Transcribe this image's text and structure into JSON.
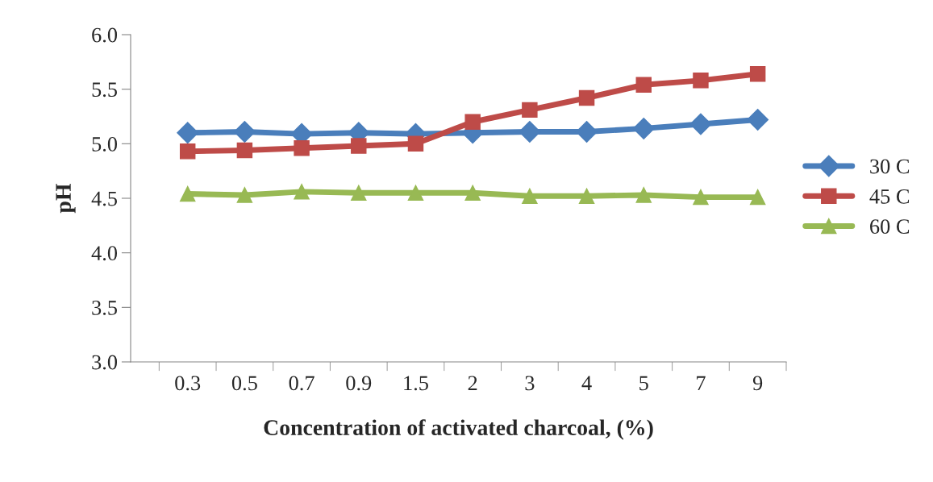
{
  "chart_data": {
    "type": "line",
    "xlabel": "Concentration of activated charcoal, (%)",
    "ylabel": "pH",
    "categories": [
      "0.3",
      "0.5",
      "0.7",
      "0.9",
      "1.5",
      "2",
      "3",
      "4",
      "5",
      "7",
      "9"
    ],
    "series": [
      {
        "name": "30 C",
        "color": "#4a7ebb",
        "marker": "diamond",
        "values": [
          5.1,
          5.11,
          5.09,
          5.1,
          5.09,
          5.1,
          5.11,
          5.11,
          5.14,
          5.18,
          5.22
        ]
      },
      {
        "name": "45 C",
        "color": "#be4b48",
        "marker": "square",
        "values": [
          4.93,
          4.94,
          4.96,
          4.98,
          5.0,
          5.2,
          5.31,
          5.42,
          5.54,
          5.58,
          5.64
        ]
      },
      {
        "name": "60 C",
        "color": "#98b954",
        "marker": "triangle",
        "values": [
          4.54,
          4.53,
          4.56,
          4.55,
          4.55,
          4.55,
          4.52,
          4.52,
          4.53,
          4.51,
          4.51
        ]
      }
    ],
    "ylim": [
      3.0,
      6.0
    ],
    "yticks": [
      {
        "value": 3.0,
        "label": "3.0"
      },
      {
        "value": 3.5,
        "label": "3.5"
      },
      {
        "value": 4.0,
        "label": "4.0"
      },
      {
        "value": 4.5,
        "label": "4.5"
      },
      {
        "value": 5.0,
        "label": "5.0"
      },
      {
        "value": 5.5,
        "label": "5.5"
      },
      {
        "value": 6.0,
        "label": "6.0"
      }
    ],
    "grid": false,
    "legend": "right"
  }
}
